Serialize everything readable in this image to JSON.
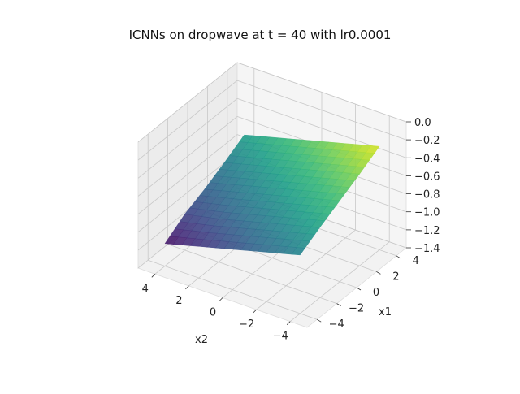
{
  "chart_data": {
    "type": "surface3d",
    "title": "ICNNs on dropwave at t = 40 with lr0.0001",
    "xlabel": "x2",
    "ylabel": "x1",
    "zlabel": "",
    "xlim": [
      -5,
      5
    ],
    "ylim": [
      -5,
      5
    ],
    "zlim": [
      -1.4,
      0.0
    ],
    "x_ticks": [
      "4",
      "2",
      "0",
      "−2",
      "−4"
    ],
    "y_ticks": [
      "−4",
      "−2",
      "0",
      "2",
      "4"
    ],
    "z_ticks": [
      "0.0",
      "−0.2",
      "−0.4",
      "−0.6",
      "−0.8",
      "−1.0",
      "−1.2",
      "−1.4"
    ],
    "colormap": "viridis",
    "surface": {
      "description_corners": "x2=4,x1=-4 -> low; x2=-4,x1=4 -> high",
      "x2": [
        4,
        2,
        0,
        -2,
        -4
      ],
      "x1": [
        -4,
        -2,
        0,
        2,
        4
      ],
      "z_grid": [
        [
          -1.15,
          -1.0,
          -0.9,
          -0.78,
          -0.65
        ],
        [
          -1.05,
          -0.92,
          -0.8,
          -0.68,
          -0.55
        ],
        [
          -0.95,
          -0.82,
          -0.7,
          -0.58,
          -0.45
        ],
        [
          -0.85,
          -0.72,
          -0.6,
          -0.48,
          -0.35
        ],
        [
          -0.75,
          -0.62,
          -0.5,
          -0.38,
          -0.25
        ]
      ]
    },
    "grid": true,
    "pane_color": "#f2f2f2"
  }
}
